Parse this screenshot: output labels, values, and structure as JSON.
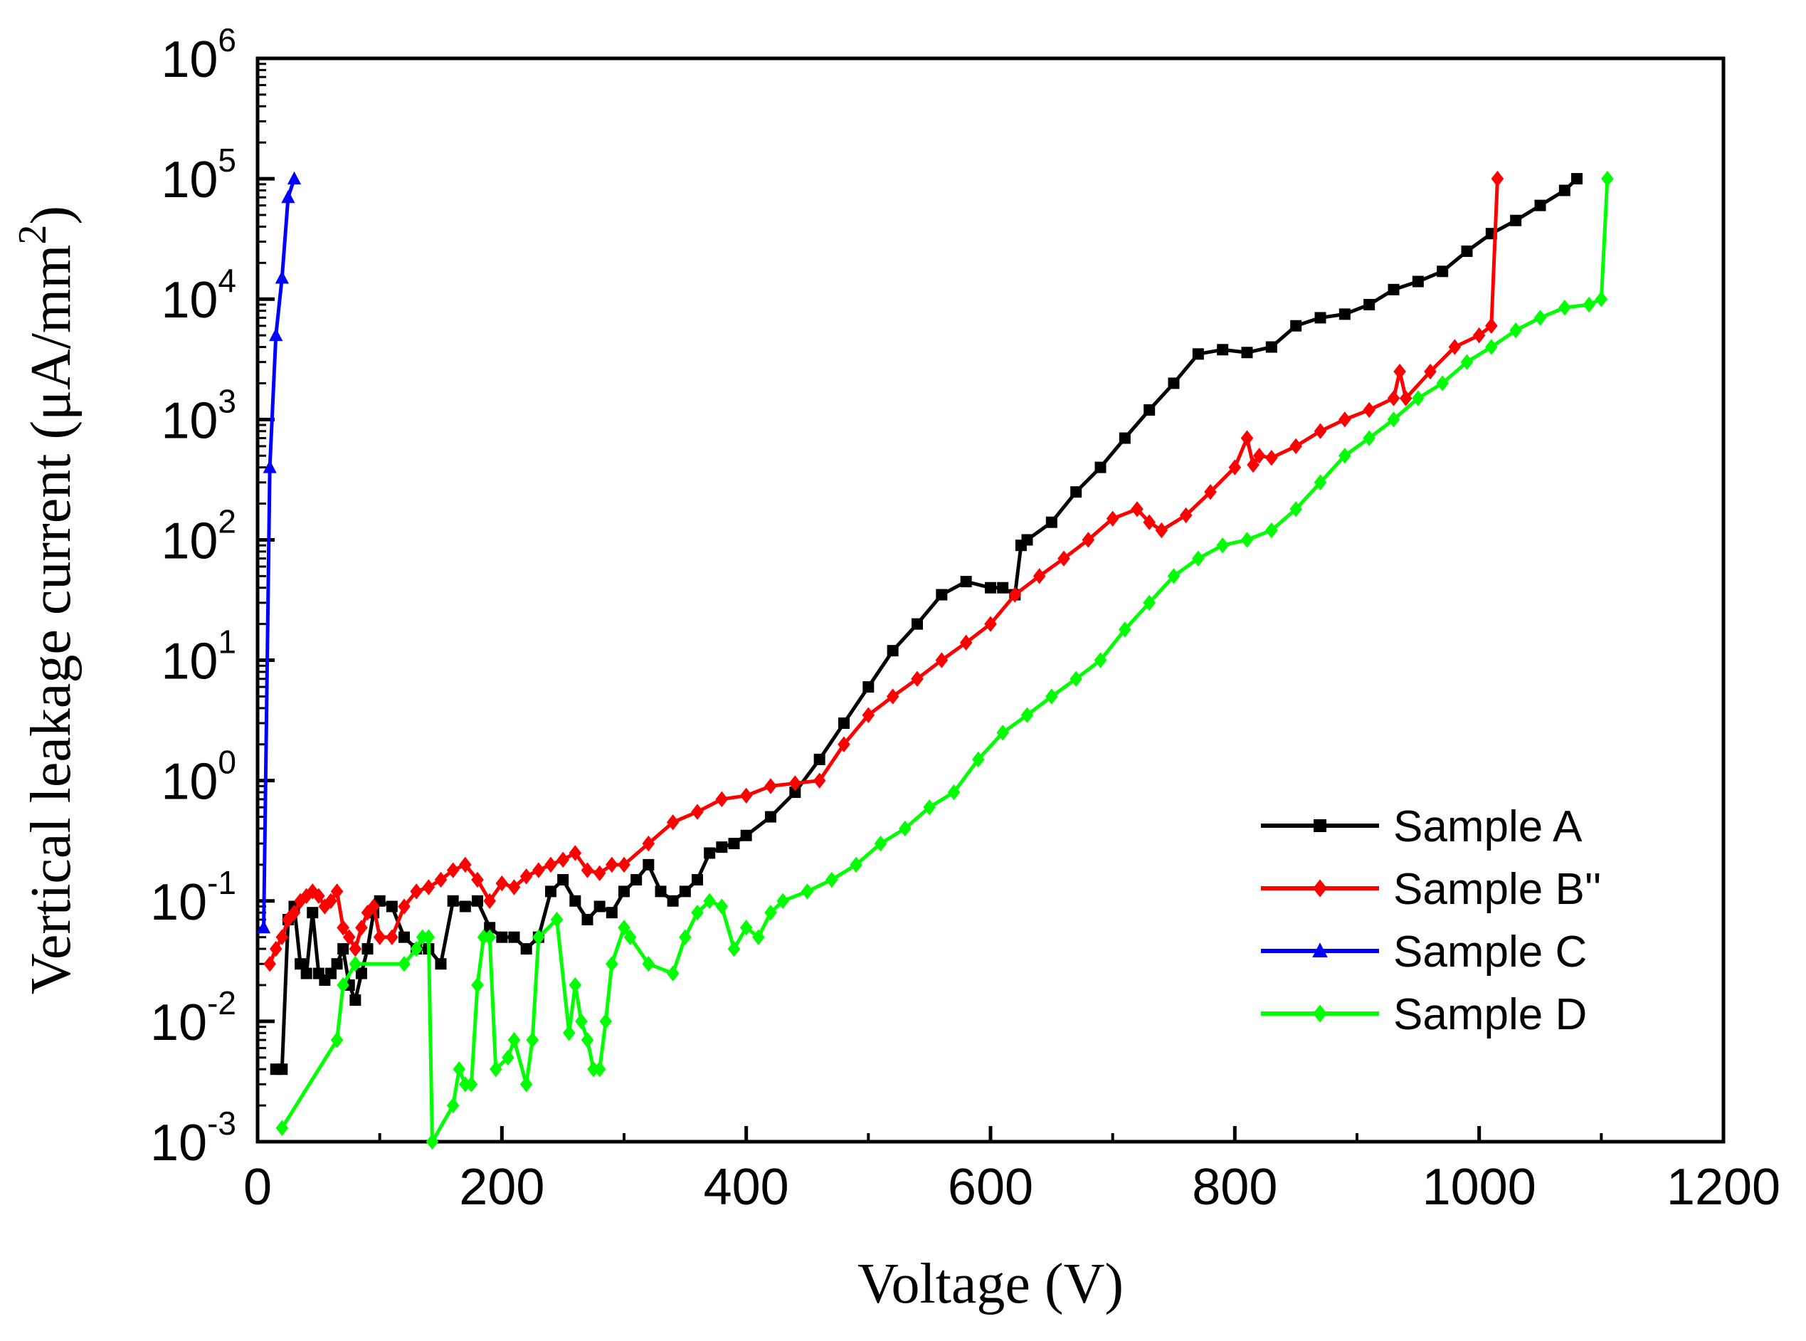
{
  "chart_data": {
    "type": "line",
    "title": "",
    "xlabel": "Voltage (V)",
    "ylabel": "Vertical leakage current (μA/mm²)",
    "ylabel_prefix": "Vertical leakage current (μA/mm",
    "ylabel_sup": "2",
    "ylabel_suffix": ")",
    "xlim": [
      0,
      1200
    ],
    "ylim": [
      0.001,
      1000000
    ],
    "yscale": "log",
    "xticks": [
      0,
      200,
      400,
      600,
      800,
      1000,
      1200
    ],
    "xtick_labels": [
      "0",
      "200",
      "400",
      "600",
      "800",
      "1000",
      "1200"
    ],
    "yticks": [
      0.001,
      0.01,
      0.1,
      1,
      10,
      100,
      1000,
      10000,
      100000,
      1000000
    ],
    "ytick_labels": [
      {
        "base": "10",
        "exp": "-3"
      },
      {
        "base": "10",
        "exp": "-2"
      },
      {
        "base": "10",
        "exp": "-1"
      },
      {
        "base": "10",
        "exp": "0"
      },
      {
        "base": "10",
        "exp": "1"
      },
      {
        "base": "10",
        "exp": "2"
      },
      {
        "base": "10",
        "exp": "3"
      },
      {
        "base": "10",
        "exp": "4"
      },
      {
        "base": "10",
        "exp": "5"
      },
      {
        "base": "10",
        "exp": "6"
      }
    ],
    "legend_position": "lower-right",
    "series": [
      {
        "name": "Sample A",
        "color": "#000000",
        "marker": "square",
        "x": [
          15,
          20,
          25,
          30,
          35,
          40,
          45,
          50,
          55,
          60,
          65,
          70,
          75,
          80,
          85,
          90,
          95,
          100,
          110,
          120,
          130,
          140,
          150,
          160,
          170,
          180,
          190,
          200,
          210,
          220,
          230,
          240,
          250,
          260,
          270,
          280,
          290,
          300,
          310,
          320,
          330,
          340,
          350,
          360,
          370,
          380,
          390,
          400,
          420,
          440,
          460,
          480,
          500,
          520,
          540,
          560,
          580,
          600,
          610,
          620,
          625,
          630,
          650,
          670,
          690,
          710,
          730,
          750,
          770,
          790,
          810,
          830,
          850,
          870,
          890,
          910,
          930,
          950,
          970,
          990,
          1010,
          1030,
          1050,
          1070,
          1080
        ],
        "y": [
          0.004,
          0.004,
          0.07,
          0.09,
          0.03,
          0.025,
          0.08,
          0.025,
          0.022,
          0.025,
          0.03,
          0.04,
          0.02,
          0.015,
          0.025,
          0.04,
          0.08,
          0.1,
          0.09,
          0.05,
          0.04,
          0.04,
          0.03,
          0.1,
          0.09,
          0.1,
          0.06,
          0.05,
          0.05,
          0.04,
          0.05,
          0.12,
          0.15,
          0.1,
          0.07,
          0.09,
          0.08,
          0.12,
          0.15,
          0.2,
          0.12,
          0.1,
          0.12,
          0.15,
          0.25,
          0.28,
          0.3,
          0.35,
          0.5,
          0.8,
          1.5,
          3,
          6,
          12,
          20,
          35,
          45,
          40,
          40,
          35,
          90,
          100,
          140,
          250,
          400,
          700,
          1200,
          2000,
          3500,
          3800,
          3600,
          4000,
          6000,
          7000,
          7500,
          9000,
          12000,
          14000,
          17000,
          25000,
          35000,
          45000,
          60000,
          80000,
          100000
        ]
      },
      {
        "name": "Sample B''",
        "color": "#ff0000",
        "marker": "diamond",
        "x": [
          10,
          15,
          20,
          25,
          30,
          35,
          40,
          45,
          50,
          55,
          60,
          65,
          70,
          75,
          80,
          85,
          90,
          95,
          100,
          110,
          120,
          130,
          140,
          150,
          160,
          170,
          180,
          190,
          200,
          210,
          220,
          230,
          240,
          250,
          260,
          270,
          280,
          290,
          300,
          320,
          340,
          360,
          380,
          400,
          420,
          440,
          460,
          480,
          500,
          520,
          540,
          560,
          580,
          600,
          620,
          640,
          660,
          680,
          700,
          720,
          730,
          740,
          760,
          780,
          800,
          810,
          815,
          820,
          830,
          850,
          870,
          890,
          910,
          930,
          935,
          940,
          960,
          980,
          1000,
          1010,
          1015
        ],
        "y": [
          0.03,
          0.04,
          0.05,
          0.07,
          0.08,
          0.1,
          0.11,
          0.12,
          0.11,
          0.09,
          0.1,
          0.12,
          0.06,
          0.05,
          0.04,
          0.06,
          0.08,
          0.09,
          0.05,
          0.05,
          0.09,
          0.12,
          0.13,
          0.15,
          0.18,
          0.2,
          0.15,
          0.1,
          0.14,
          0.13,
          0.16,
          0.18,
          0.2,
          0.22,
          0.25,
          0.18,
          0.17,
          0.2,
          0.2,
          0.3,
          0.45,
          0.55,
          0.7,
          0.75,
          0.9,
          0.95,
          1.0,
          2.0,
          3.5,
          5,
          7,
          10,
          14,
          20,
          35,
          50,
          70,
          100,
          150,
          180,
          140,
          120,
          160,
          250,
          400,
          700,
          420,
          500,
          480,
          600,
          800,
          1000,
          1200,
          1500,
          2500,
          1500,
          2500,
          4000,
          5000,
          6000,
          100000
        ]
      },
      {
        "name": "Sample C",
        "color": "#0000ff",
        "marker": "triangle",
        "x": [
          5,
          10,
          15,
          20,
          25,
          30
        ],
        "y": [
          0.06,
          400,
          5000,
          15000,
          70000,
          100000
        ]
      },
      {
        "name": "Sample D",
        "color": "#00ff00",
        "marker": "diamond",
        "x": [
          20,
          65,
          70,
          80,
          120,
          130,
          135,
          140,
          143,
          160,
          165,
          170,
          175,
          180,
          185,
          190,
          195,
          205,
          210,
          220,
          225,
          230,
          245,
          255,
          260,
          265,
          270,
          275,
          280,
          285,
          290,
          300,
          305,
          320,
          340,
          350,
          360,
          370,
          380,
          390,
          400,
          410,
          420,
          430,
          450,
          470,
          490,
          510,
          530,
          550,
          570,
          590,
          610,
          630,
          650,
          670,
          690,
          710,
          730,
          750,
          770,
          790,
          810,
          830,
          850,
          870,
          890,
          910,
          930,
          950,
          970,
          990,
          1010,
          1030,
          1050,
          1070,
          1090,
          1100,
          1105
        ],
        "y": [
          0.0013,
          0.007,
          0.02,
          0.03,
          0.03,
          0.04,
          0.05,
          0.05,
          0.001,
          0.002,
          0.004,
          0.003,
          0.003,
          0.02,
          0.05,
          0.05,
          0.004,
          0.005,
          0.007,
          0.003,
          0.007,
          0.05,
          0.07,
          0.008,
          0.02,
          0.01,
          0.007,
          0.004,
          0.004,
          0.01,
          0.03,
          0.06,
          0.05,
          0.03,
          0.025,
          0.05,
          0.08,
          0.1,
          0.09,
          0.04,
          0.06,
          0.05,
          0.08,
          0.1,
          0.12,
          0.15,
          0.2,
          0.3,
          0.4,
          0.6,
          0.8,
          1.5,
          2.5,
          3.5,
          5,
          7,
          10,
          18,
          30,
          50,
          70,
          90,
          100,
          120,
          180,
          300,
          500,
          700,
          1000,
          1500,
          2000,
          3000,
          4000,
          5500,
          7000,
          8500,
          9000,
          10000,
          100000
        ]
      }
    ]
  }
}
